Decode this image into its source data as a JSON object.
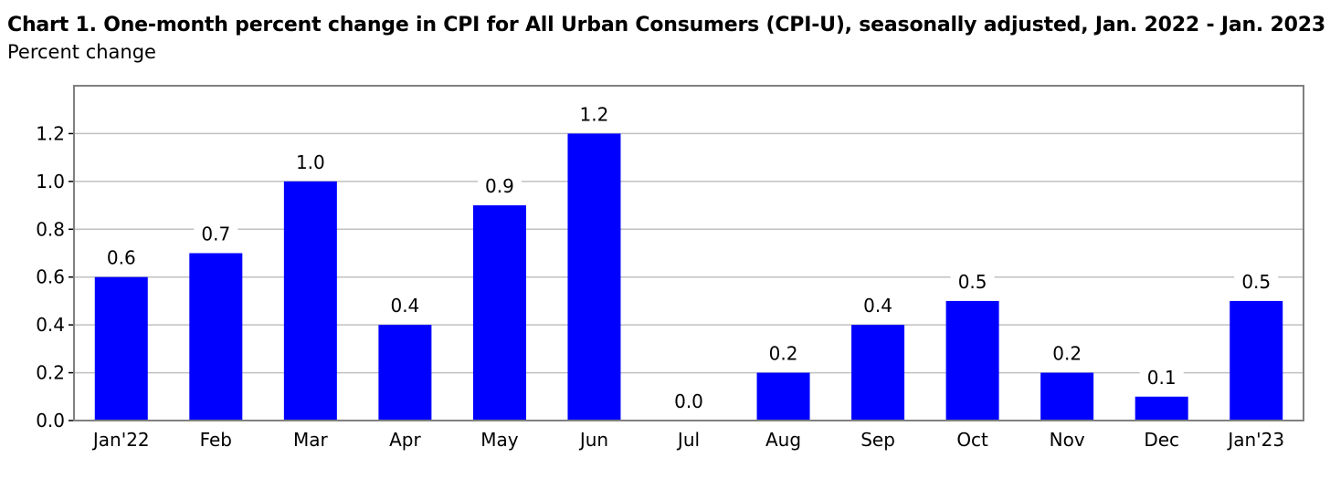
{
  "chart_data": {
    "type": "bar",
    "title": "Chart 1. One-month percent change in CPI for All Urban Consumers (CPI-U), seasonally adjusted, Jan. 2022 - Jan. 2023",
    "subtitle": "Percent change",
    "xlabel": "",
    "ylabel": "",
    "categories": [
      "Jan'22",
      "Feb",
      "Mar",
      "Apr",
      "May",
      "Jun",
      "Jul",
      "Aug",
      "Sep",
      "Oct",
      "Nov",
      "Dec",
      "Jan'23"
    ],
    "values": [
      0.6,
      0.7,
      1.0,
      0.4,
      0.9,
      1.2,
      0.0,
      0.2,
      0.4,
      0.5,
      0.2,
      0.1,
      0.5
    ],
    "data_labels": [
      "0.6",
      "0.7",
      "1.0",
      "0.4",
      "0.9",
      "1.2",
      "0.0",
      "0.2",
      "0.4",
      "0.5",
      "0.2",
      "0.1",
      "0.5"
    ],
    "ylim": [
      0,
      1.4
    ],
    "yticks": [
      0.0,
      0.2,
      0.4,
      0.6,
      0.8,
      1.0,
      1.2
    ],
    "ytick_labels": [
      "0.0",
      "0.2",
      "0.4",
      "0.6",
      "0.8",
      "1.0",
      "1.2"
    ],
    "grid": true,
    "legend": "none",
    "bar_color": "#0000ff",
    "grid_color": "#c0c0c0",
    "frame_color": "#808080"
  }
}
